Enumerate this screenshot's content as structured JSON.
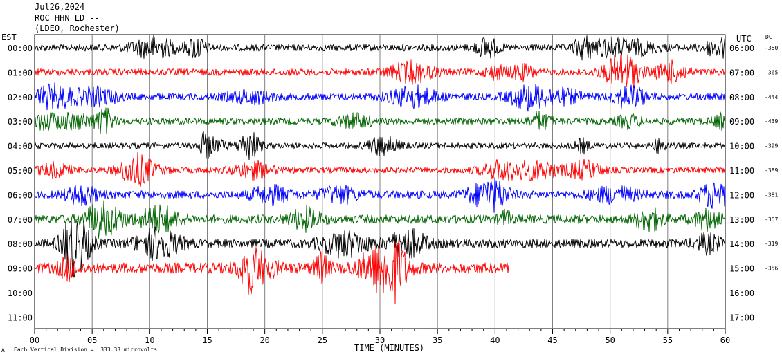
{
  "header": {
    "date": "Jul26,2024",
    "station": "ROC HHN LD --",
    "network": "(LDEO, Rochester)"
  },
  "left_axis_title": "EST",
  "right_axis_title": "UTC",
  "dc_title": "DC",
  "footer": {
    "scale_note": "Each Vertical Division =  333.33 microvolts",
    "footer_mark": "A"
  },
  "chart_data": {
    "type": "line",
    "title": "",
    "xlabel": "TIME (MINUTES)",
    "ylabel": "",
    "xlim": [
      0,
      60
    ],
    "x_ticks": [
      "00",
      "05",
      "10",
      "15",
      "20",
      "25",
      "30",
      "35",
      "40",
      "45",
      "50",
      "55",
      "60"
    ],
    "grid": true,
    "trace_colors": [
      "#000000",
      "#ff0000",
      "#0000ff",
      "#006400"
    ],
    "rows": [
      {
        "est": "00:00",
        "utc": "06:00",
        "dc": "-350",
        "color": "#000000",
        "end_minute": 60,
        "amp": 7
      },
      {
        "est": "01:00",
        "utc": "07:00",
        "dc": "-365",
        "color": "#ff0000",
        "end_minute": 60,
        "amp": 7
      },
      {
        "est": "02:00",
        "utc": "08:00",
        "dc": "-444",
        "color": "#0000ff",
        "end_minute": 60,
        "amp": 7
      },
      {
        "est": "03:00",
        "utc": "09:00",
        "dc": "-439",
        "color": "#006400",
        "end_minute": 60,
        "amp": 7
      },
      {
        "est": "04:00",
        "utc": "10:00",
        "dc": "-399",
        "color": "#000000",
        "end_minute": 60,
        "amp": 6
      },
      {
        "est": "05:00",
        "utc": "11:00",
        "dc": "-389",
        "color": "#ff0000",
        "end_minute": 60,
        "amp": 6
      },
      {
        "est": "06:00",
        "utc": "12:00",
        "dc": "-381",
        "color": "#0000ff",
        "end_minute": 60,
        "amp": 8
      },
      {
        "est": "07:00",
        "utc": "13:00",
        "dc": "-357",
        "color": "#006400",
        "end_minute": 60,
        "amp": 9
      },
      {
        "est": "08:00",
        "utc": "14:00",
        "dc": "-319",
        "color": "#000000",
        "end_minute": 60,
        "amp": 9
      },
      {
        "est": "09:00",
        "utc": "15:00",
        "dc": "-356",
        "color": "#ff0000",
        "end_minute": 41.2,
        "amp": 11
      },
      {
        "est": "10:00",
        "utc": "16:00",
        "dc": "",
        "color": "#000000",
        "end_minute": 0,
        "amp": 0
      },
      {
        "est": "11:00",
        "utc": "17:00",
        "dc": "",
        "color": "#000000",
        "end_minute": 0,
        "amp": 0
      }
    ]
  }
}
